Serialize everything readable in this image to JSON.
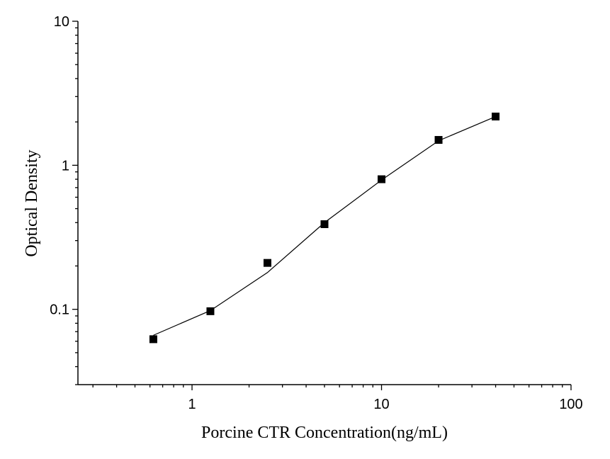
{
  "chart_data": {
    "type": "scatter",
    "xscale": "log",
    "yscale": "log",
    "xlim": [
      0.25,
      100
    ],
    "ylim": [
      0.03,
      10
    ],
    "xlabel": "Porcine CTR  Concentration(ng/mL)",
    "ylabel": "Optical Density",
    "x_ticks": [
      {
        "value": 1,
        "label": "1"
      },
      {
        "value": 10,
        "label": "10"
      },
      {
        "value": 100,
        "label": "100"
      }
    ],
    "y_ticks": [
      {
        "value": 0.1,
        "label": "0.1"
      },
      {
        "value": 1,
        "label": "1"
      },
      {
        "value": 10,
        "label": "10"
      }
    ],
    "grid": false,
    "series": [
      {
        "marker": "square",
        "color": "#000000",
        "points": [
          {
            "x": 0.625,
            "y": 0.062
          },
          {
            "x": 1.25,
            "y": 0.097
          },
          {
            "x": 2.5,
            "y": 0.21
          },
          {
            "x": 5,
            "y": 0.39
          },
          {
            "x": 10,
            "y": 0.8
          },
          {
            "x": 20,
            "y": 1.5
          },
          {
            "x": 40,
            "y": 2.18
          }
        ]
      }
    ],
    "fit_curve": {
      "color": "#000000",
      "points": [
        {
          "x": 0.625,
          "y": 0.066
        },
        {
          "x": 1.25,
          "y": 0.098
        },
        {
          "x": 2.5,
          "y": 0.18
        },
        {
          "x": 5,
          "y": 0.4
        },
        {
          "x": 10,
          "y": 0.79
        },
        {
          "x": 20,
          "y": 1.48
        },
        {
          "x": 40,
          "y": 2.18
        }
      ]
    }
  }
}
